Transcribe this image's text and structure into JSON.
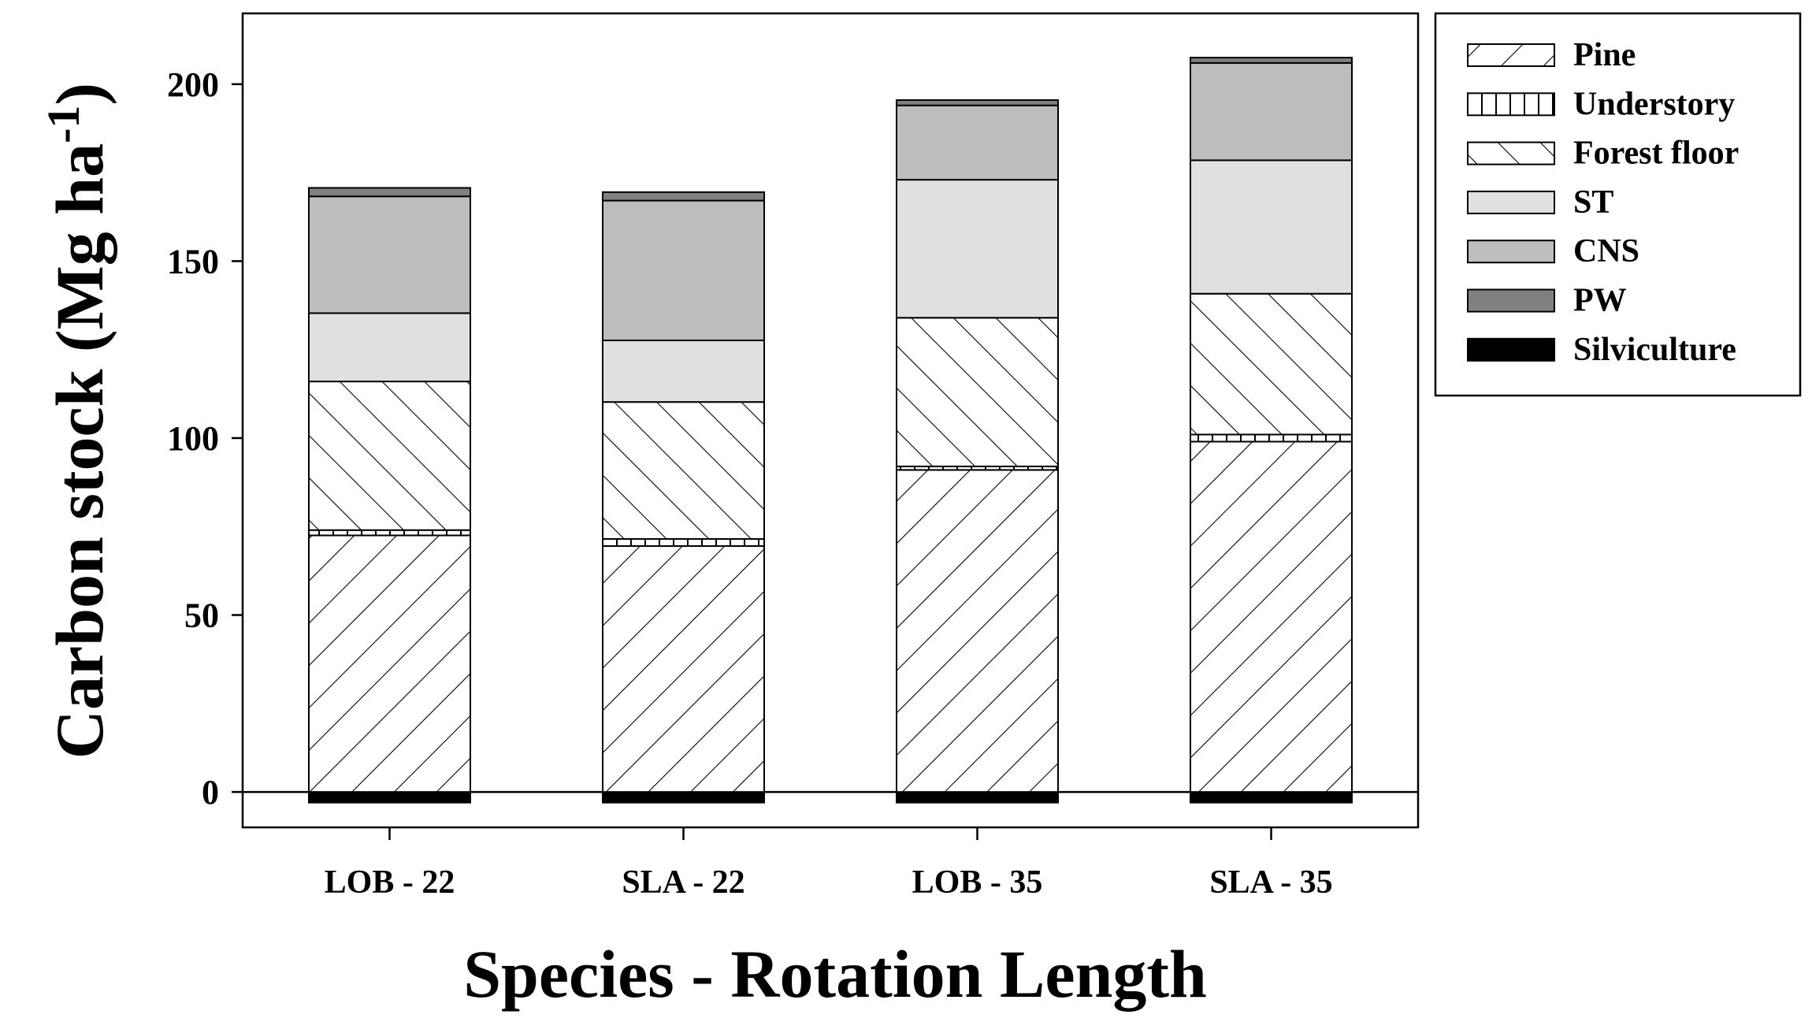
{
  "chart_data": {
    "type": "bar",
    "stacked": true,
    "title": "",
    "xlabel": "Species - Rotation Length",
    "ylabel": "Carbon stock (Mg ha",
    "ylabel_sup": "-1",
    "ylabel_close": ")",
    "ylim": [
      -10,
      220
    ],
    "yticks": [
      0,
      50,
      100,
      150,
      200
    ],
    "categories": [
      "LOB - 22",
      "SLA - 22",
      "LOB - 35",
      "SLA - 35"
    ],
    "series": [
      {
        "name": "Silviculture",
        "values": [
          -3,
          -3,
          -3,
          -3
        ]
      },
      {
        "name": "Pine",
        "values": [
          72.5,
          69.5,
          91.0,
          99.0
        ]
      },
      {
        "name": "Understory",
        "values": [
          1.5,
          2.0,
          1.0,
          2.0
        ]
      },
      {
        "name": "Forest floor",
        "values": [
          42.0,
          38.7,
          42.0,
          39.8
        ]
      },
      {
        "name": "ST",
        "values": [
          19.3,
          17.4,
          39.0,
          37.7
        ]
      },
      {
        "name": "CNS",
        "values": [
          33.0,
          39.5,
          21.0,
          27.5
        ]
      },
      {
        "name": "PW",
        "values": [
          2.4,
          2.4,
          1.5,
          1.5
        ]
      }
    ],
    "legend": {
      "placement": "top-right",
      "order": [
        "Pine",
        "Understory",
        "Forest floor",
        "ST",
        "CNS",
        "PW",
        "Silviculture"
      ]
    },
    "grid": false
  },
  "styles": {
    "Silviculture": {
      "fill": "#000000",
      "pattern": "solid"
    },
    "Pine": {
      "fill": "#ffffff",
      "pattern": "forward-diagonal"
    },
    "Understory": {
      "fill": "#ffffff",
      "pattern": "vertical"
    },
    "Forest floor": {
      "fill": "#ffffff",
      "pattern": "back-diagonal"
    },
    "ST": {
      "fill": "#e0e0e0",
      "pattern": "solid"
    },
    "CNS": {
      "fill": "#bdbdbd",
      "pattern": "solid"
    },
    "PW": {
      "fill": "#808080",
      "pattern": "solid"
    }
  }
}
